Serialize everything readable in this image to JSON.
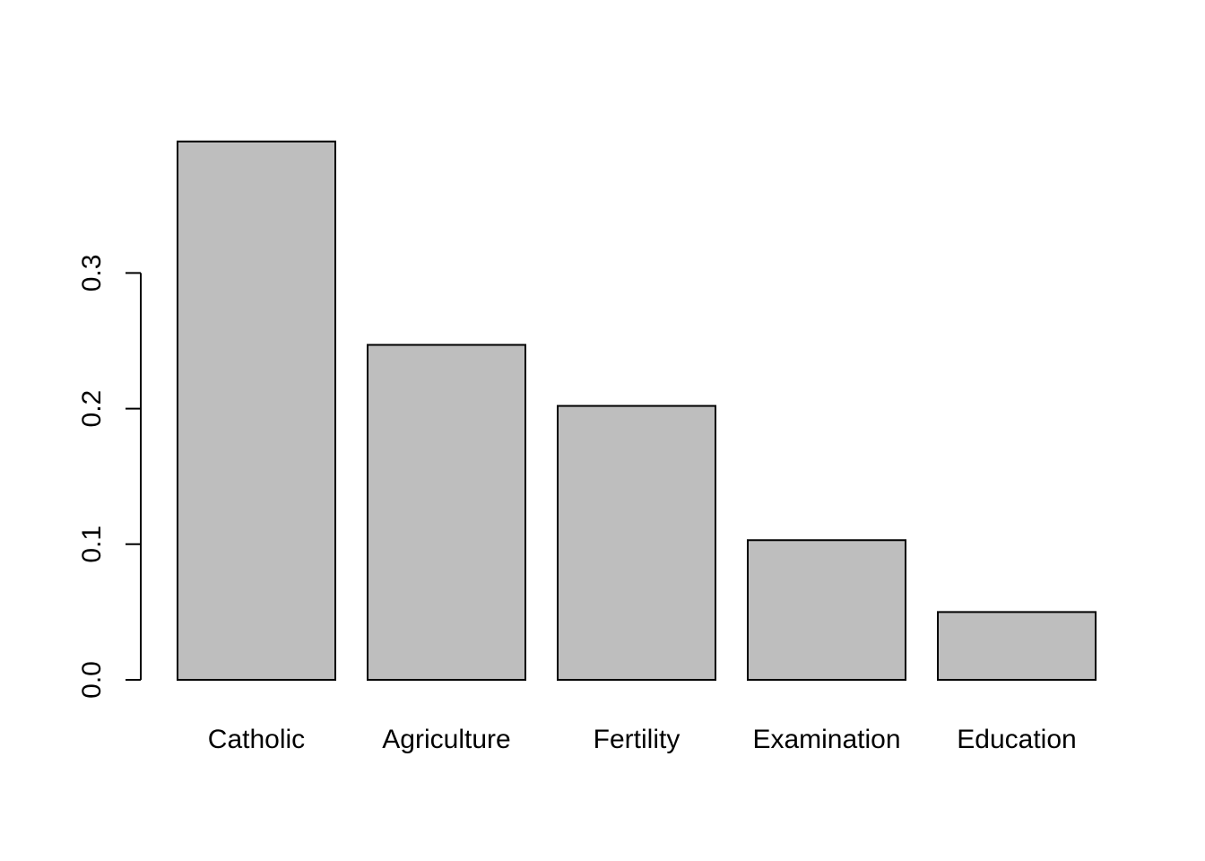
{
  "chart_data": {
    "type": "bar",
    "categories": [
      "Catholic",
      "Agriculture",
      "Fertility",
      "Examination",
      "Education"
    ],
    "values": [
      0.397,
      0.247,
      0.202,
      0.103,
      0.05
    ],
    "title": "",
    "xlabel": "",
    "ylabel": "",
    "ylim": [
      0,
      0.397
    ],
    "yticks": [
      0.0,
      0.1,
      0.2,
      0.3
    ],
    "ytick_labels": [
      "0.0",
      "0.1",
      "0.2",
      "0.3"
    ],
    "grid": false,
    "legend": "none",
    "colors": {
      "bar_fill": "#bebebe",
      "bar_stroke": "#000000",
      "background": "#ffffff"
    }
  }
}
